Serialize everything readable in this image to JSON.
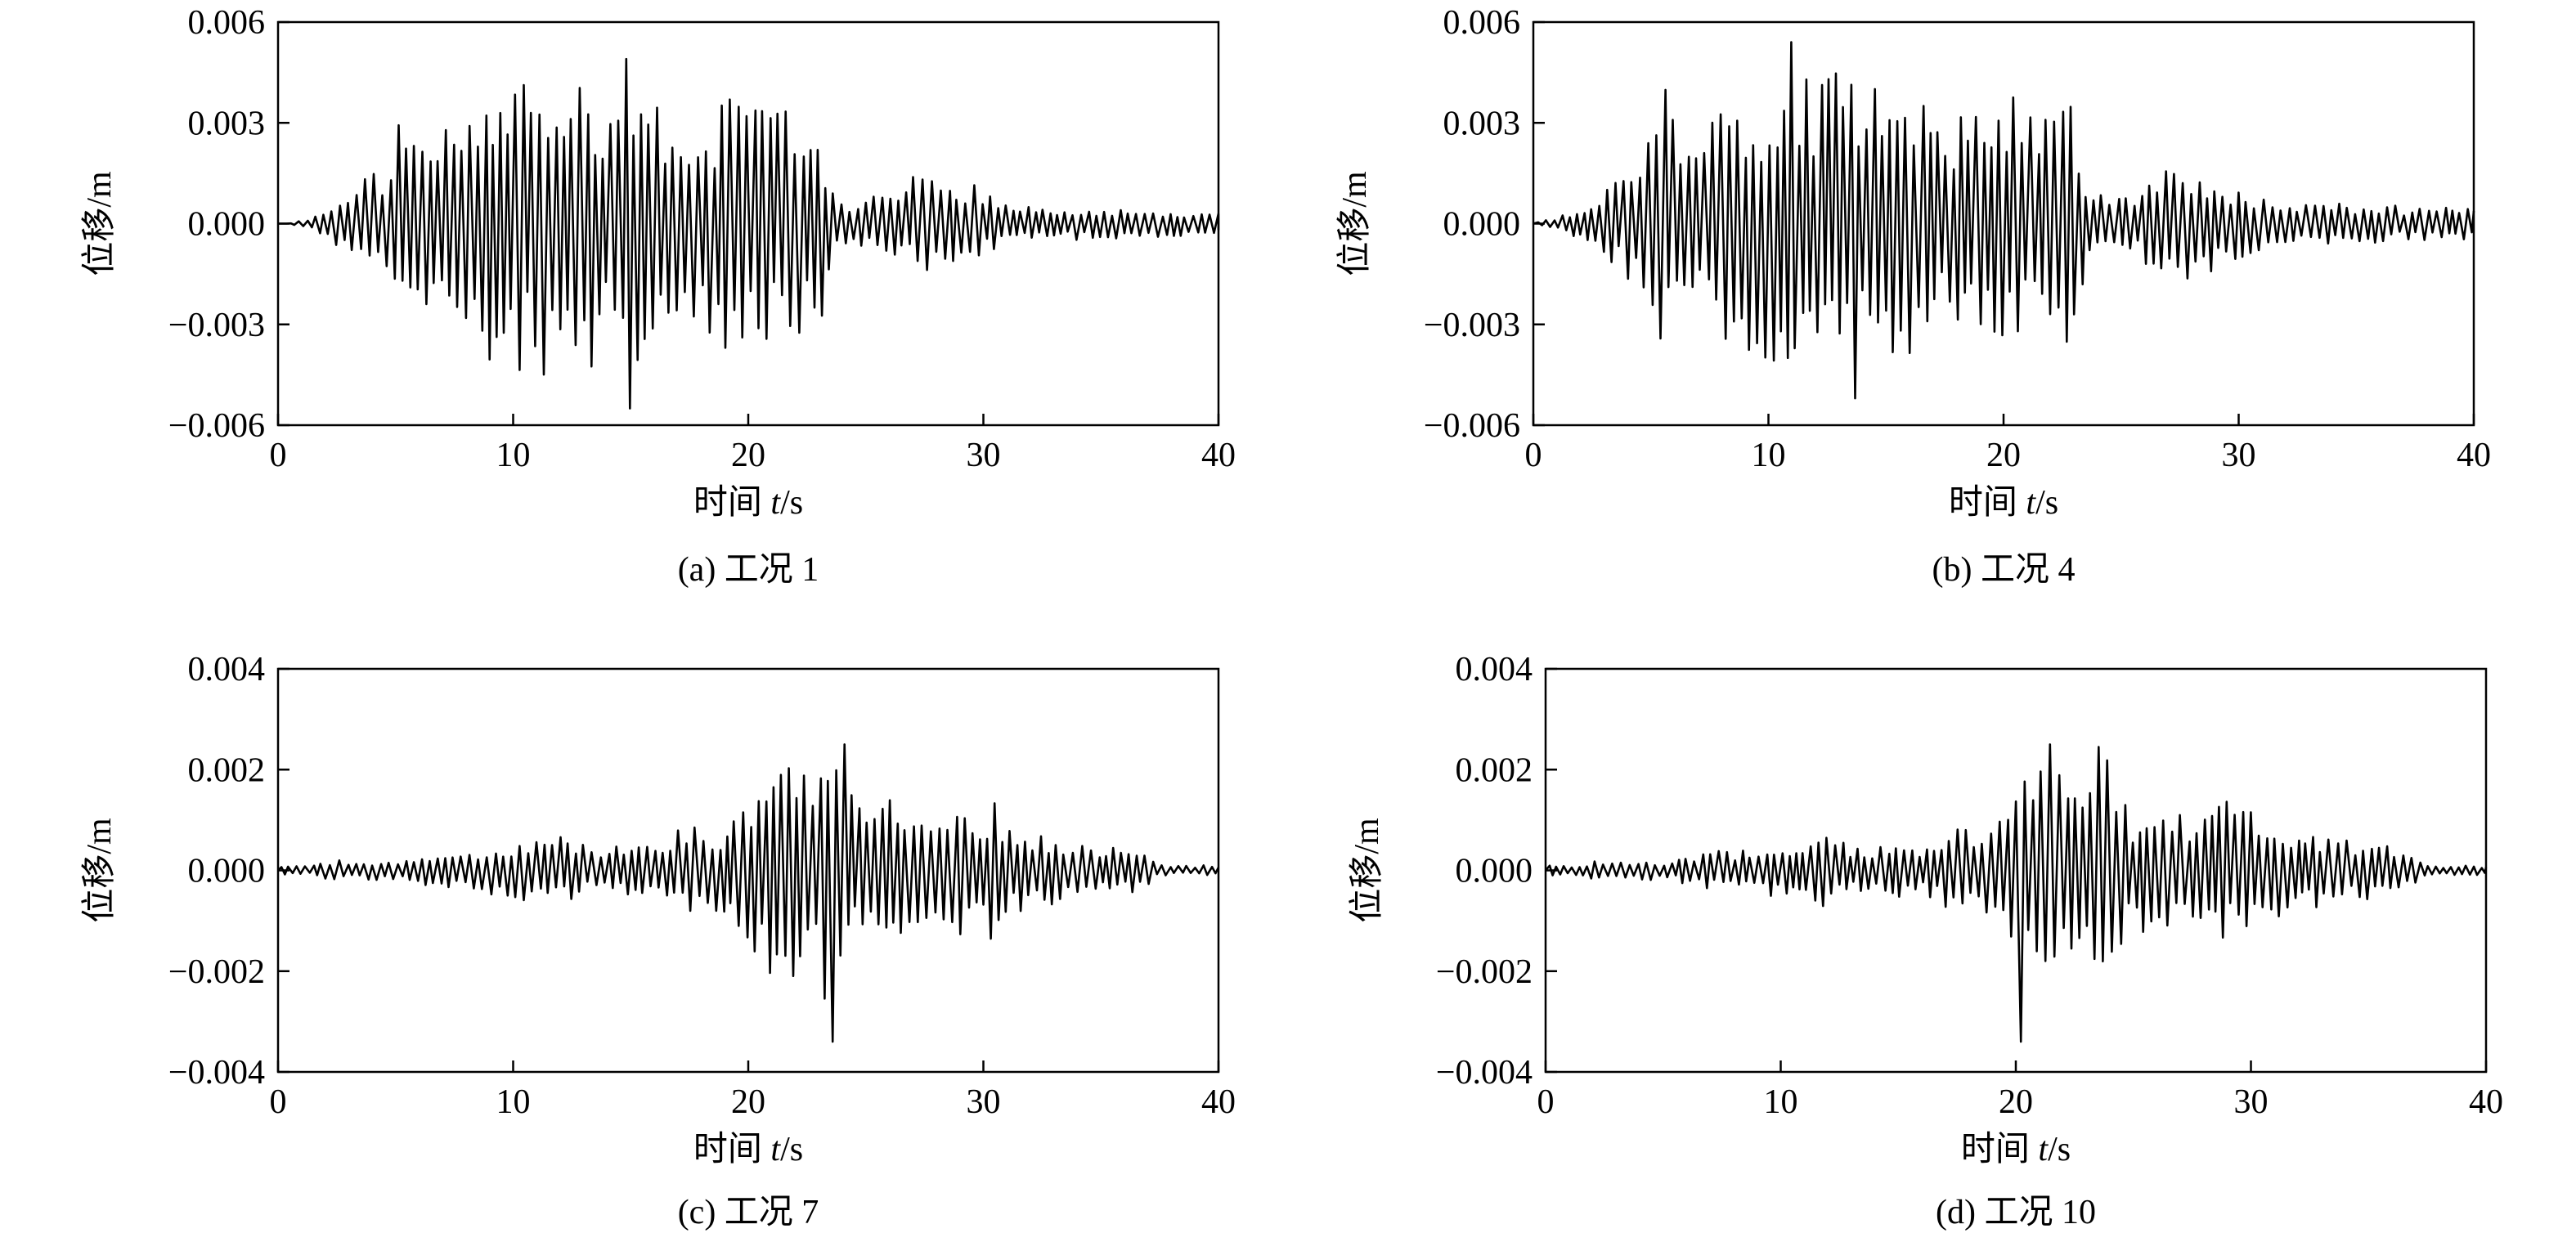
{
  "chart_data": [
    {
      "type": "line",
      "subcaption": "(a) 工况 1",
      "xlabel_prefix": "时间 ",
      "xlabel_var": "t",
      "xlabel_suffix": "/s",
      "ylabel": "位移/m",
      "xlim": [
        0,
        40
      ],
      "ylim": [
        -0.006,
        0.006
      ],
      "xticks": [
        0,
        10,
        20,
        30,
        40
      ],
      "xtick_labels": [
        "0",
        "10",
        "20",
        "30",
        "40"
      ],
      "yticks": [
        -0.006,
        -0.003,
        0.0,
        0.003,
        0.006
      ],
      "ytick_labels": [
        "−0.006",
        "−0.003",
        "0.000",
        "0.003",
        "0.006"
      ],
      "grid": false,
      "series": [
        {
          "values_x": [
            0,
            0.5,
            1,
            1.5,
            2,
            2.5,
            3,
            3.5,
            4,
            4.5,
            5,
            5.5,
            6,
            6.5,
            7,
            7.5,
            8,
            8.5,
            9,
            9.5,
            10,
            10.5,
            11,
            11.5,
            12,
            12.5,
            13,
            13.5,
            14,
            14.5,
            15,
            15.5,
            16,
            16.5,
            17,
            17.5,
            18,
            18.5,
            19,
            19.5,
            20,
            20.5,
            21,
            21.5,
            22,
            22.5,
            23,
            23.5,
            24,
            24.5,
            25,
            25.5,
            26,
            26.5,
            27,
            27.5,
            28,
            28.5,
            29,
            29.5,
            30,
            30.5,
            31,
            31.5,
            32,
            32.5,
            33,
            33.5,
            34,
            34.5,
            35,
            35.5,
            36,
            36.5,
            37,
            37.5,
            38,
            38.5,
            39,
            39.5,
            40
          ],
          "envelope": [
            0,
            0,
            0.0001,
            0.0002,
            0.0004,
            0.0007,
            0.001,
            0.0013,
            0.0016,
            0.0017,
            0.0025,
            0.0045,
            0.0033,
            0.0022,
            0.0028,
            0.003,
            0.0034,
            0.003,
            0.0042,
            0.0035,
            0.0042,
            0.0045,
            0.0044,
            0.0049,
            0.0038,
            0.0042,
            0.0046,
            0.0045,
            0.0032,
            0.0044,
            0.0047,
            0.0037,
            0.0043,
            0.0038,
            0.0032,
            0.0028,
            0.003,
            0.0035,
            0.0038,
            0.0036,
            0.0041,
            0.0038,
            0.0033,
            0.0036,
            0.0037,
            0.0034,
            0.0035,
            0.0012,
            0.0008,
            0.0006,
            0.0007,
            0.0009,
            0.001,
            0.0012,
            0.0014,
            0.0015,
            0.0016,
            0.0014,
            0.0013,
            0.0012,
            0.001,
            0.0008,
            0.0007,
            0.0006,
            0.0005,
            0.0005,
            0.0004,
            0.0005,
            0.0005,
            0.0004,
            0.0005,
            0.0005,
            0.0004,
            0.0004,
            0.0004,
            0.0004,
            0.0004,
            0.0004,
            0.0004,
            0.0004,
            0.0003
          ],
          "peak_max": 0.0049,
          "peak_min": -0.0055
        }
      ]
    },
    {
      "type": "line",
      "subcaption": "(b) 工况 4",
      "xlabel_prefix": "时间 ",
      "xlabel_var": "t",
      "xlabel_suffix": "/s",
      "ylabel": "位移/m",
      "xlim": [
        0,
        40
      ],
      "ylim": [
        -0.006,
        0.006
      ],
      "xticks": [
        0,
        10,
        20,
        30,
        40
      ],
      "xtick_labels": [
        "0",
        "10",
        "20",
        "30",
        "40"
      ],
      "yticks": [
        -0.006,
        -0.003,
        0.0,
        0.003,
        0.006
      ],
      "ytick_labels": [
        "−0.006",
        "−0.003",
        "0.000",
        "0.003",
        "0.006"
      ],
      "grid": false,
      "series": [
        {
          "values_x": [
            0,
            0.5,
            1,
            1.5,
            2,
            2.5,
            3,
            3.5,
            4,
            4.5,
            5,
            5.5,
            6,
            6.5,
            7,
            7.5,
            8,
            8.5,
            9,
            9.5,
            10,
            10.5,
            11,
            11.5,
            12,
            12.5,
            13,
            13.5,
            14,
            14.5,
            15,
            15.5,
            16,
            16.5,
            17,
            17.5,
            18,
            18.5,
            19,
            19.5,
            20,
            20.5,
            21,
            21.5,
            22,
            22.5,
            23,
            23.5,
            24,
            24.5,
            25,
            25.5,
            26,
            26.5,
            27,
            27.5,
            28,
            28.5,
            29,
            29.5,
            30,
            30.5,
            31,
            31.5,
            32,
            32.5,
            33,
            33.5,
            34,
            34.5,
            35,
            35.5,
            36,
            36.5,
            37,
            37.5,
            38,
            38.5,
            39,
            39.5,
            40
          ],
          "envelope": [
            0,
            0.0001,
            0.0002,
            0.0003,
            0.0005,
            0.0008,
            0.0011,
            0.0014,
            0.0017,
            0.0019,
            0.0027,
            0.0047,
            0.0034,
            0.0024,
            0.003,
            0.0032,
            0.0036,
            0.0032,
            0.0044,
            0.0036,
            0.0044,
            0.0047,
            0.0046,
            0.0054,
            0.004,
            0.0044,
            0.0048,
            0.0046,
            0.0034,
            0.0046,
            0.0049,
            0.0039,
            0.0045,
            0.0039,
            0.0033,
            0.003,
            0.0032,
            0.0037,
            0.004,
            0.0036,
            0.0043,
            0.0039,
            0.0034,
            0.0037,
            0.0038,
            0.0035,
            0.0036,
            0.0013,
            0.0009,
            0.0008,
            0.0009,
            0.001,
            0.0012,
            0.0014,
            0.0016,
            0.0017,
            0.0018,
            0.0016,
            0.0014,
            0.0013,
            0.0011,
            0.0009,
            0.0008,
            0.0008,
            0.0007,
            0.0006,
            0.0006,
            0.0006,
            0.0006,
            0.0006,
            0.0006,
            0.0006,
            0.0006,
            0.0006,
            0.0005,
            0.0005,
            0.0005,
            0.0005,
            0.0005,
            0.0005,
            0.0005
          ],
          "peak_max": 0.0054,
          "peak_min": -0.0052
        }
      ]
    },
    {
      "type": "line",
      "subcaption": "(c) 工况 7",
      "xlabel_prefix": "时间 ",
      "xlabel_var": "t",
      "xlabel_suffix": "/s",
      "ylabel": "位移/m",
      "xlim": [
        0,
        40
      ],
      "ylim": [
        -0.004,
        0.004
      ],
      "xticks": [
        0,
        10,
        20,
        30,
        40
      ],
      "xtick_labels": [
        "0",
        "10",
        "20",
        "30",
        "40"
      ],
      "yticks": [
        -0.004,
        -0.002,
        0.0,
        0.002,
        0.004
      ],
      "ytick_labels": [
        "−0.004",
        "−0.002",
        "0.000",
        "0.002",
        "0.004"
      ],
      "grid": false,
      "series": [
        {
          "values_x": [
            0,
            0.5,
            1,
            1.5,
            2,
            2.5,
            3,
            3.5,
            4,
            4.5,
            5,
            5.5,
            6,
            6.5,
            7,
            7.5,
            8,
            8.5,
            9,
            9.5,
            10,
            10.5,
            11,
            11.5,
            12,
            12.5,
            13,
            13.5,
            14,
            14.5,
            15,
            15.5,
            16,
            16.5,
            17,
            17.5,
            18,
            18.5,
            19,
            19.5,
            20,
            20.5,
            21,
            21.5,
            22,
            22.5,
            23,
            23.5,
            24,
            24.5,
            25,
            25.5,
            26,
            26.5,
            27,
            27.5,
            28,
            28.5,
            29,
            29.5,
            30,
            30.5,
            31,
            31.5,
            32,
            32.5,
            33,
            33.5,
            34,
            34.5,
            35,
            35.5,
            36,
            36.5,
            37,
            37.5,
            38,
            38.5,
            39,
            39.5,
            40
          ],
          "envelope": [
            0.0001,
            0.0001,
            0.0001,
            0.0001,
            0.0002,
            0.0002,
            0.0002,
            0.0002,
            0.0002,
            0.0002,
            0.0002,
            0.0002,
            0.0003,
            0.0003,
            0.0004,
            0.0004,
            0.0004,
            0.0004,
            0.0005,
            0.0004,
            0.0006,
            0.0006,
            0.0007,
            0.0008,
            0.0007,
            0.0006,
            0.0005,
            0.0004,
            0.0005,
            0.0005,
            0.0006,
            0.0006,
            0.0005,
            0.0006,
            0.0008,
            0.0009,
            0.0008,
            0.0008,
            0.0009,
            0.0012,
            0.0018,
            0.0022,
            0.0025,
            0.0034,
            0.0025,
            0.0021,
            0.0022,
            0.0032,
            0.0024,
            0.0015,
            0.0012,
            0.0013,
            0.0016,
            0.0014,
            0.0011,
            0.0012,
            0.0011,
            0.0013,
            0.0014,
            0.0012,
            0.0013,
            0.0014,
            0.001,
            0.0009,
            0.0008,
            0.0008,
            0.0007,
            0.0006,
            0.0005,
            0.0005,
            0.0005,
            0.0005,
            0.0005,
            0.0004,
            0.0003,
            0.0001,
            0.0001,
            0.0001,
            0.0001,
            0.0001,
            0.0001
          ],
          "peak_max": 0.0025,
          "peak_min": -0.0034
        }
      ]
    },
    {
      "type": "line",
      "subcaption": "(d) 工况 10",
      "xlabel_prefix": "时间 ",
      "xlabel_var": "t",
      "xlabel_suffix": "/s",
      "ylabel": "位移/m",
      "xlim": [
        0,
        40
      ],
      "ylim": [
        -0.004,
        0.004
      ],
      "xticks": [
        0,
        10,
        20,
        30,
        40
      ],
      "xtick_labels": [
        "0",
        "10",
        "20",
        "30",
        "40"
      ],
      "yticks": [
        -0.004,
        -0.002,
        0.0,
        0.002,
        0.004
      ],
      "ytick_labels": [
        "−0.004",
        "−0.002",
        "0.000",
        "0.002",
        "0.004"
      ],
      "grid": false,
      "series": [
        {
          "values_x": [
            0,
            0.5,
            1,
            1.5,
            2,
            2.5,
            3,
            3.5,
            4,
            4.5,
            5,
            5.5,
            6,
            6.5,
            7,
            7.5,
            8,
            8.5,
            9,
            9.5,
            10,
            10.5,
            11,
            11.5,
            12,
            12.5,
            13,
            13.5,
            14,
            14.5,
            15,
            15.5,
            16,
            16.5,
            17,
            17.5,
            18,
            18.5,
            19,
            19.5,
            20,
            20.5,
            21,
            21.5,
            22,
            22.5,
            23,
            23.5,
            24,
            24.5,
            25,
            25.5,
            26,
            26.5,
            27,
            27.5,
            28,
            28.5,
            29,
            29.5,
            30,
            30.5,
            31,
            31.5,
            32,
            32.5,
            33,
            33.5,
            34,
            34.5,
            35,
            35.5,
            36,
            36.5,
            37,
            37.5,
            38,
            38.5,
            39,
            39.5,
            40
          ],
          "envelope": [
            0.0001,
            0.0001,
            0.0001,
            0.0001,
            0.0002,
            0.0002,
            0.0002,
            0.0002,
            0.0002,
            0.0002,
            0.0002,
            0.0002,
            0.0003,
            0.0003,
            0.0004,
            0.0004,
            0.0004,
            0.0004,
            0.0005,
            0.0005,
            0.0006,
            0.0006,
            0.0007,
            0.0008,
            0.0007,
            0.0006,
            0.0005,
            0.0004,
            0.0005,
            0.0005,
            0.0006,
            0.0006,
            0.0005,
            0.0006,
            0.0008,
            0.0009,
            0.0008,
            0.0008,
            0.001,
            0.0013,
            0.0019,
            0.0022,
            0.0025,
            0.0034,
            0.0025,
            0.0022,
            0.0023,
            0.0032,
            0.0024,
            0.0016,
            0.0012,
            0.0013,
            0.0016,
            0.0014,
            0.0011,
            0.0012,
            0.0011,
            0.0013,
            0.0014,
            0.0012,
            0.0013,
            0.0014,
            0.001,
            0.0009,
            0.0008,
            0.0008,
            0.0007,
            0.0006,
            0.0006,
            0.0006,
            0.0006,
            0.0006,
            0.0006,
            0.0005,
            0.0003,
            0.0001,
            0.0001,
            0.0001,
            0.0001,
            0.0001,
            0.0001
          ],
          "peak_max": 0.0025,
          "peak_min": -0.0034
        }
      ]
    }
  ]
}
